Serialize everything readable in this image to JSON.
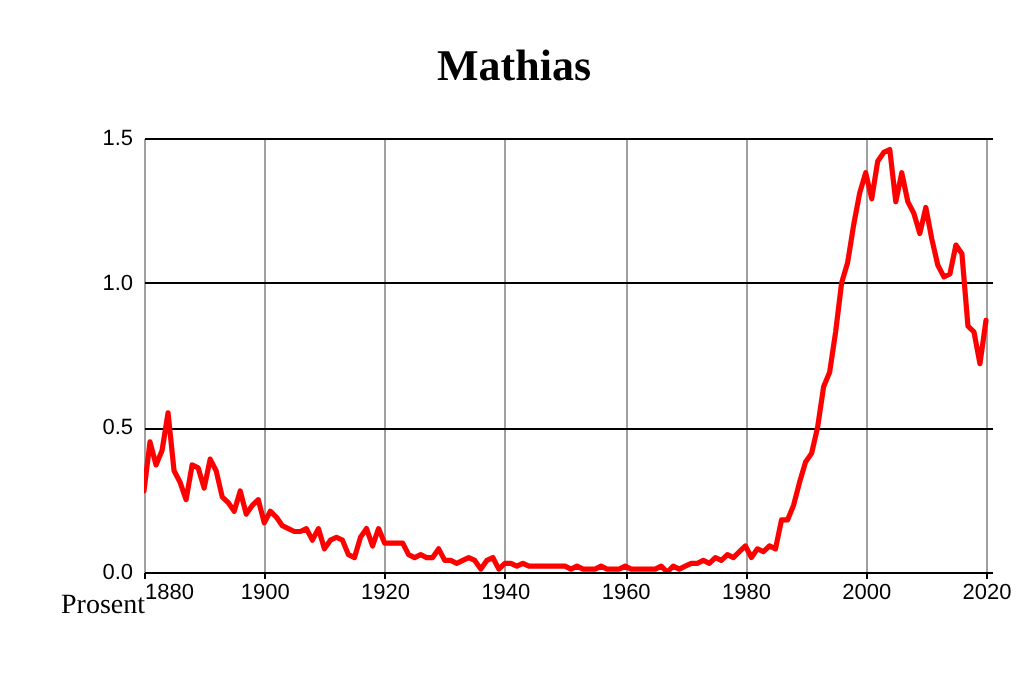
{
  "chart_data": {
    "type": "line",
    "title": "Mathias",
    "ylabel": "Prosent",
    "x": [
      1880,
      1881,
      1882,
      1883,
      1884,
      1885,
      1886,
      1887,
      1888,
      1889,
      1890,
      1891,
      1892,
      1893,
      1894,
      1895,
      1896,
      1897,
      1898,
      1899,
      1900,
      1901,
      1902,
      1903,
      1904,
      1905,
      1906,
      1907,
      1908,
      1909,
      1910,
      1911,
      1912,
      1913,
      1914,
      1915,
      1916,
      1917,
      1918,
      1919,
      1920,
      1921,
      1922,
      1923,
      1924,
      1925,
      1926,
      1927,
      1928,
      1929,
      1930,
      1931,
      1932,
      1933,
      1934,
      1935,
      1936,
      1937,
      1938,
      1939,
      1940,
      1941,
      1942,
      1943,
      1944,
      1945,
      1946,
      1947,
      1948,
      1949,
      1950,
      1951,
      1952,
      1953,
      1954,
      1955,
      1956,
      1957,
      1958,
      1959,
      1960,
      1961,
      1962,
      1963,
      1964,
      1965,
      1966,
      1967,
      1968,
      1969,
      1970,
      1971,
      1972,
      1973,
      1974,
      1975,
      1976,
      1977,
      1978,
      1979,
      1980,
      1981,
      1982,
      1983,
      1984,
      1985,
      1986,
      1987,
      1988,
      1989,
      1990,
      1991,
      1992,
      1993,
      1994,
      1995,
      1996,
      1997,
      1998,
      1999,
      2000,
      2001,
      2002,
      2003,
      2004,
      2005,
      2006,
      2007,
      2008,
      2009,
      2010,
      2011,
      2012,
      2013,
      2014,
      2015,
      2016,
      2017,
      2018,
      2019,
      2020
    ],
    "series": [
      {
        "color": "#ff0000",
        "values": [
          0.28,
          0.45,
          0.37,
          0.42,
          0.55,
          0.35,
          0.31,
          0.25,
          0.37,
          0.36,
          0.29,
          0.39,
          0.35,
          0.26,
          0.24,
          0.21,
          0.28,
          0.2,
          0.23,
          0.25,
          0.17,
          0.21,
          0.19,
          0.16,
          0.15,
          0.14,
          0.14,
          0.15,
          0.11,
          0.15,
          0.08,
          0.11,
          0.12,
          0.11,
          0.06,
          0.05,
          0.12,
          0.15,
          0.09,
          0.15,
          0.1,
          0.1,
          0.1,
          0.1,
          0.06,
          0.05,
          0.06,
          0.05,
          0.05,
          0.08,
          0.04,
          0.04,
          0.03,
          0.04,
          0.05,
          0.04,
          0.01,
          0.04,
          0.05,
          0.01,
          0.03,
          0.03,
          0.02,
          0.03,
          0.02,
          0.02,
          0.02,
          0.02,
          0.02,
          0.02,
          0.02,
          0.01,
          0.02,
          0.01,
          0.01,
          0.01,
          0.02,
          0.01,
          0.01,
          0.01,
          0.02,
          0.01,
          0.01,
          0.01,
          0.01,
          0.01,
          0.02,
          0.0,
          0.02,
          0.01,
          0.02,
          0.03,
          0.03,
          0.04,
          0.03,
          0.05,
          0.04,
          0.06,
          0.05,
          0.07,
          0.09,
          0.05,
          0.08,
          0.07,
          0.09,
          0.08,
          0.18,
          0.18,
          0.23,
          0.31,
          0.38,
          0.41,
          0.5,
          0.64,
          0.69,
          0.83,
          1.0,
          1.07,
          1.2,
          1.31,
          1.38,
          1.29,
          1.42,
          1.45,
          1.46,
          1.28,
          1.38,
          1.28,
          1.24,
          1.17,
          1.26,
          1.15,
          1.06,
          1.02,
          1.03,
          1.13,
          1.1,
          0.85,
          0.83,
          0.72,
          0.87
        ]
      }
    ],
    "xlim": [
      1880,
      2021
    ],
    "xticks": [
      1880,
      1900,
      1920,
      1940,
      1960,
      1980,
      2000,
      2020
    ],
    "ylim": [
      0,
      1.5
    ],
    "yticks": [
      {
        "value": 0,
        "label": "0.0"
      },
      {
        "value": 0.5,
        "label": "0.5"
      },
      {
        "value": 1,
        "label": "1.0"
      },
      {
        "value": 1.5,
        "label": "1.5"
      }
    ],
    "grid": true
  }
}
